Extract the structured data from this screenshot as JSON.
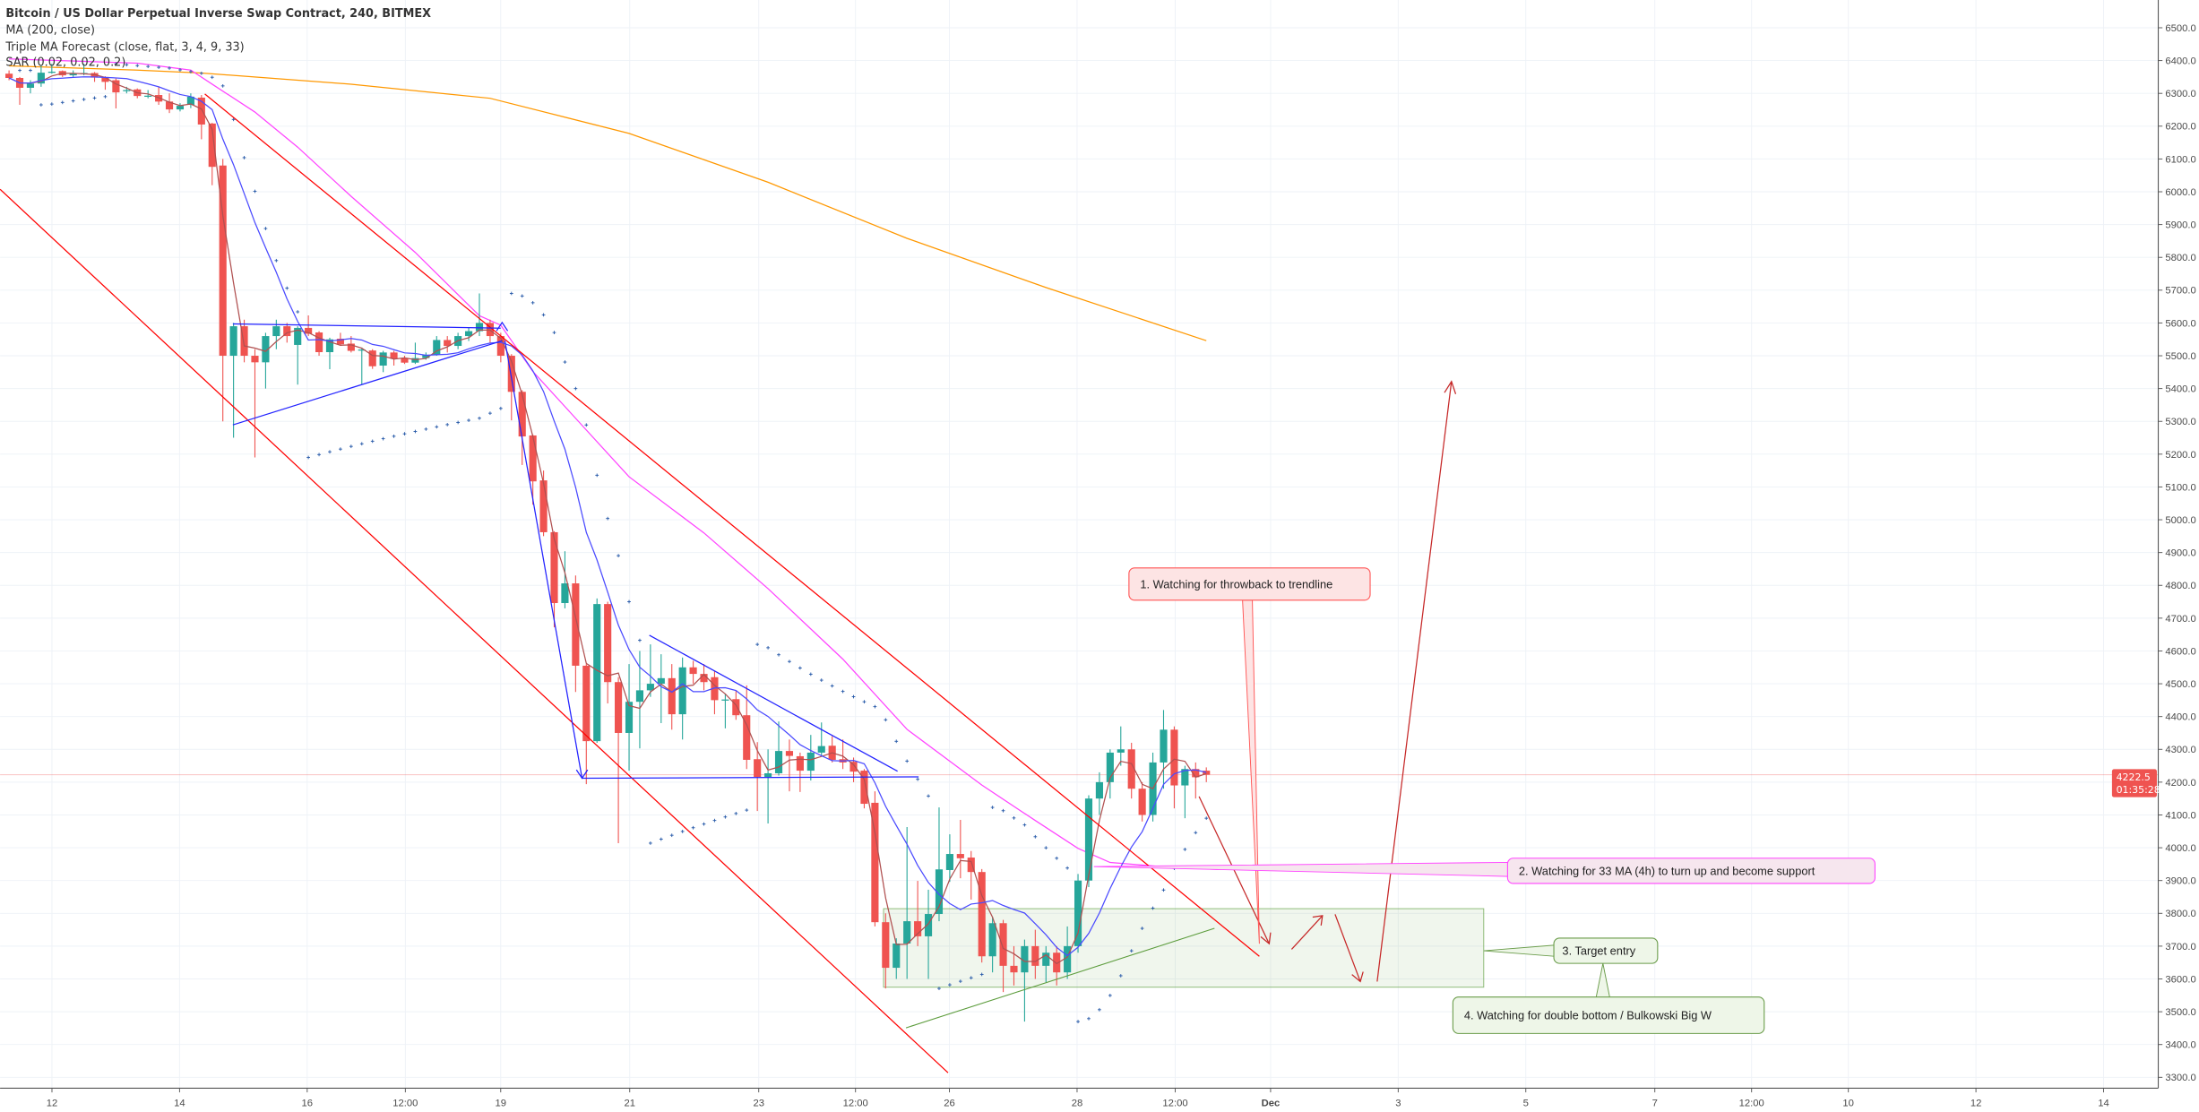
{
  "header": {
    "title": "Bitcoin / US Dollar Perpetual Inverse Swap Contract, 240, BITMEX",
    "indicators": [
      "MA (200, close)",
      "Triple MA Forecast (close, flat, 3, 4, 9, 33)",
      "SAR (0.02, 0.02, 0.2)"
    ]
  },
  "price_label": {
    "value": "4222.5",
    "countdown": "01:35:28"
  },
  "annotations": [
    "1. Watching for throwback to trendline",
    "2. Watching for 33 MA (4h) to turn up and become support",
    "3. Target entry",
    "4. Watching for double bottom / Bulkowski Big W"
  ],
  "colors": {
    "up": "#26a69a",
    "down": "#ef5350",
    "ma200": "#ff9800",
    "ma33": "#ff44ff",
    "ma_fast": "#4a4aff",
    "ma_slow": "#b05050",
    "sar": "#2a5caa",
    "trendline": "#ff0000",
    "pattern": "#2222ff",
    "target_zone": "#5c9c3c",
    "grid": "#eef2f7"
  },
  "chart_data": {
    "type": "candlestick",
    "ylim": [
      3300,
      6500
    ],
    "grid": true,
    "x_ticks": [
      "12",
      "14",
      "16",
      "12:00",
      "19",
      "21",
      "23",
      "12:00",
      "26",
      "28",
      "12:00",
      "Dec",
      "3",
      "5",
      "7",
      "12:00",
      "10",
      "12",
      "14"
    ],
    "y_ticks": [
      "6500.0",
      "6400.0",
      "6300.0",
      "6200.0",
      "6100.0",
      "6000.0",
      "5900.0",
      "5800.0",
      "5700.0",
      "5600.0",
      "5500.0",
      "5400.0",
      "5300.0",
      "5200.0",
      "5100.0",
      "5000.0",
      "4900.0",
      "4800.0",
      "4700.0",
      "4600.0",
      "4500.0",
      "4400.0",
      "4300.0",
      "4200.0",
      "4100.0",
      "4000.0",
      "3900.0",
      "3800.0",
      "3700.0",
      "3600.0",
      "3500.0",
      "3400.0",
      "3300.0"
    ],
    "candles": [
      [
        6360,
        6370,
        6340,
        6347
      ],
      [
        6347,
        6350,
        6265,
        6317
      ],
      [
        6317,
        6340,
        6300,
        6330
      ],
      [
        6330,
        6385,
        6320,
        6363
      ],
      [
        6365,
        6390,
        6360,
        6366
      ],
      [
        6368,
        6370,
        6350,
        6355
      ],
      [
        6355,
        6370,
        6350,
        6362
      ],
      [
        6362,
        6390,
        6355,
        6362
      ],
      [
        6362,
        6365,
        6335,
        6348
      ],
      [
        6350,
        6352,
        6311,
        6335
      ],
      [
        6340,
        6345,
        6254,
        6303
      ],
      [
        6308,
        6320,
        6300,
        6310
      ],
      [
        6312,
        6315,
        6285,
        6292
      ],
      [
        6292,
        6310,
        6285,
        6293
      ],
      [
        6295,
        6320,
        6265,
        6275
      ],
      [
        6275,
        6300,
        6240,
        6251
      ],
      [
        6251,
        6270,
        6245,
        6262
      ],
      [
        6265,
        6300,
        6255,
        6290
      ],
      [
        6287,
        6295,
        6160,
        6205
      ],
      [
        6208,
        6210,
        6020,
        6076
      ],
      [
        6080,
        6100,
        5300,
        5500
      ],
      [
        5500,
        5600,
        5250,
        5590
      ],
      [
        5590,
        5610,
        5480,
        5500
      ],
      [
        5500,
        5520,
        5190,
        5480
      ],
      [
        5480,
        5570,
        5400,
        5560
      ],
      [
        5560,
        5610,
        5520,
        5590
      ],
      [
        5590,
        5600,
        5540,
        5560
      ],
      [
        5533,
        5590,
        5412,
        5585
      ],
      [
        5585,
        5623,
        5560,
        5567
      ],
      [
        5571,
        5575,
        5500,
        5511
      ],
      [
        5511,
        5555,
        5459,
        5550
      ],
      [
        5552,
        5570,
        5530,
        5535
      ],
      [
        5537,
        5560,
        5510,
        5515
      ],
      [
        5516,
        5525,
        5412,
        5519
      ],
      [
        5516,
        5520,
        5460,
        5468
      ],
      [
        5470,
        5515,
        5450,
        5510
      ],
      [
        5510,
        5515,
        5470,
        5492
      ],
      [
        5493,
        5500,
        5475,
        5479
      ],
      [
        5479,
        5540,
        5475,
        5493
      ],
      [
        5493,
        5510,
        5488,
        5503
      ],
      [
        5503,
        5560,
        5500,
        5548
      ],
      [
        5548,
        5560,
        5510,
        5530
      ],
      [
        5530,
        5570,
        5520,
        5560
      ],
      [
        5560,
        5585,
        5545,
        5575
      ],
      [
        5575,
        5690,
        5560,
        5600
      ],
      [
        5600,
        5610,
        5540,
        5560
      ],
      [
        5560,
        5570,
        5480,
        5500
      ],
      [
        5500,
        5505,
        5303,
        5390
      ],
      [
        5390,
        5395,
        5167,
        5254
      ],
      [
        5257,
        5260,
        5046,
        5117
      ],
      [
        5120,
        5150,
        4950,
        4962
      ],
      [
        4962,
        4965,
        4672,
        4746
      ],
      [
        4746,
        4904,
        4730,
        4806
      ],
      [
        4806,
        4830,
        4475,
        4555
      ],
      [
        4555,
        4560,
        4194,
        4325
      ],
      [
        4325,
        4760,
        4320,
        4743
      ],
      [
        4743,
        4750,
        4440,
        4505
      ],
      [
        4505,
        4520,
        4014,
        4350
      ],
      [
        4350,
        4560,
        4235,
        4445
      ],
      [
        4445,
        4600,
        4303,
        4480
      ],
      [
        4480,
        4620,
        4460,
        4500
      ],
      [
        4500,
        4590,
        4380,
        4517
      ],
      [
        4517,
        4560,
        4360,
        4407
      ],
      [
        4407,
        4580,
        4330,
        4550
      ],
      [
        4550,
        4570,
        4500,
        4530
      ],
      [
        4530,
        4560,
        4480,
        4505
      ],
      [
        4520,
        4540,
        4407,
        4450
      ],
      [
        4450,
        4470,
        4364,
        4452
      ],
      [
        4453,
        4480,
        4390,
        4404
      ],
      [
        4404,
        4495,
        4240,
        4268
      ],
      [
        4270,
        4322,
        4112,
        4216
      ],
      [
        4216,
        4300,
        4074,
        4227
      ],
      [
        4227,
        4385,
        4220,
        4295
      ],
      [
        4295,
        4330,
        4172,
        4280
      ],
      [
        4279,
        4290,
        4170,
        4235
      ],
      [
        4235,
        4344,
        4205,
        4290
      ],
      [
        4290,
        4382,
        4280,
        4310
      ],
      [
        4311,
        4340,
        4260,
        4268
      ],
      [
        4270,
        4330,
        4240,
        4260
      ],
      [
        4262,
        4275,
        4200,
        4232
      ],
      [
        4235,
        4240,
        4120,
        4134
      ],
      [
        4137,
        4172,
        3760,
        3773
      ],
      [
        3773,
        3800,
        3571,
        3634
      ],
      [
        3634,
        3724,
        3600,
        3708
      ],
      [
        3708,
        4063,
        3600,
        3776
      ],
      [
        3776,
        3899,
        3700,
        3730
      ],
      [
        3730,
        3872,
        3600,
        3798
      ],
      [
        3798,
        4123,
        3776,
        3934
      ],
      [
        3932,
        4041,
        3896,
        3981
      ],
      [
        3981,
        4085,
        3907,
        3968
      ],
      [
        3970,
        3990,
        3842,
        3926
      ],
      [
        3926,
        3935,
        3650,
        3669
      ],
      [
        3669,
        3790,
        3620,
        3770
      ],
      [
        3770,
        3780,
        3560,
        3640
      ],
      [
        3640,
        3700,
        3580,
        3620
      ],
      [
        3620,
        3720,
        3470,
        3700
      ],
      [
        3700,
        3750,
        3600,
        3640
      ],
      [
        3640,
        3700,
        3590,
        3680
      ],
      [
        3680,
        3700,
        3580,
        3620
      ],
      [
        3620,
        3760,
        3600,
        3700
      ],
      [
        3700,
        3920,
        3680,
        3900
      ],
      [
        3900,
        4160,
        3880,
        4150
      ],
      [
        4150,
        4230,
        4100,
        4200
      ],
      [
        4200,
        4300,
        4150,
        4290
      ],
      [
        4290,
        4370,
        4250,
        4300
      ],
      [
        4300,
        4320,
        4150,
        4180
      ],
      [
        4180,
        4200,
        4080,
        4100
      ],
      [
        4100,
        4290,
        4080,
        4260
      ],
      [
        4260,
        4420,
        4180,
        4360
      ],
      [
        4360,
        4370,
        4120,
        4190
      ],
      [
        4190,
        4250,
        4090,
        4240
      ],
      [
        4240,
        4260,
        4150,
        4215
      ],
      [
        4235,
        4245,
        4200,
        4222.5
      ]
    ],
    "ma200": [
      [
        0,
        6384
      ],
      [
        12,
        6371
      ],
      [
        18,
        6362
      ],
      [
        32,
        6328
      ],
      [
        45,
        6285
      ],
      [
        58,
        6178
      ],
      [
        71,
        6029
      ],
      [
        84,
        5858
      ],
      [
        97,
        5708
      ],
      [
        112,
        5546
      ]
    ],
    "ma33": [
      [
        0,
        6405
      ],
      [
        12,
        6392
      ],
      [
        17,
        6371
      ],
      [
        19,
        6328
      ],
      [
        23,
        6243
      ],
      [
        27,
        6136
      ],
      [
        32,
        5986
      ],
      [
        38,
        5815
      ],
      [
        44,
        5622
      ],
      [
        46,
        5593
      ],
      [
        49,
        5452
      ],
      [
        52,
        5345
      ],
      [
        58,
        5131
      ],
      [
        65,
        4960
      ],
      [
        71,
        4790
      ],
      [
        78,
        4575
      ],
      [
        84,
        4361
      ],
      [
        91,
        4191
      ],
      [
        96,
        4083
      ],
      [
        100,
        3998
      ],
      [
        103,
        3955
      ],
      [
        108,
        3942
      ],
      [
        113,
        3934
      ]
    ]
  }
}
